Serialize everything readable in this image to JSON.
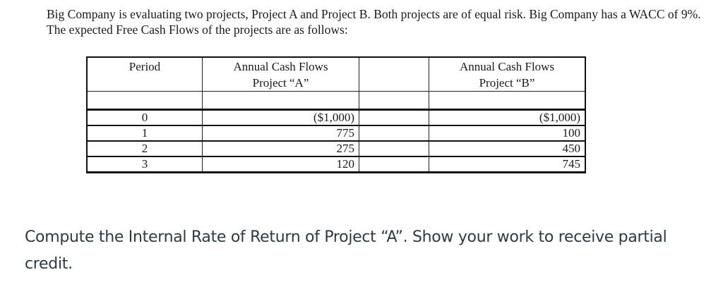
{
  "intro": {
    "text": "Big Company is evaluating two projects, Project A and Project B. Both projects are of equal risk. Big Company has a WACC of 9%. The expected Free Cash Flows of the projects are as follows:"
  },
  "table": {
    "headers": {
      "period": "Period",
      "project_a_line1": "Annual Cash Flows",
      "project_a_line2": "Project “A”",
      "spacer": "",
      "project_b_line1": "Annual Cash Flows",
      "project_b_line2": "Project “B”"
    },
    "rows": [
      {
        "period": "0",
        "a": "($1,000)",
        "b": "($1,000)"
      },
      {
        "period": "1",
        "a": "775",
        "b": "100"
      },
      {
        "period": "2",
        "a": "275",
        "b": "450"
      },
      {
        "period": "3",
        "a": "120",
        "b": "745"
      }
    ]
  },
  "question": {
    "text": "Compute the Internal Rate of Return of Project “A”.  Show your work to receive partial credit."
  }
}
